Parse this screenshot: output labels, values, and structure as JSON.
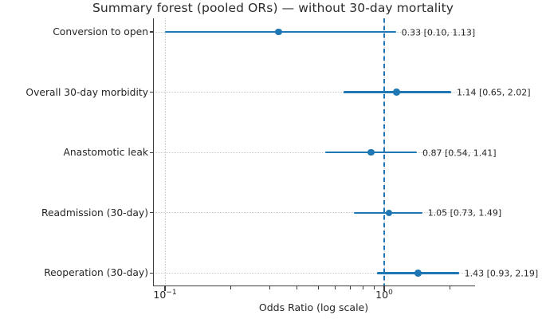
{
  "figure": {
    "title": "Summary forest (pooled ORs) — without 30-day mortality",
    "background": "#ffffff"
  },
  "chart_data": {
    "type": "scatter",
    "variant": "forest-plot",
    "title": "Summary forest (pooled ORs) — without 30-day mortality",
    "xlabel": "Odds Ratio (log scale)",
    "ylabel": "",
    "x_scale": "log10",
    "xlim": [
      0.088,
      2.6
    ],
    "grid": {
      "horizontal": "dotted per category row",
      "vertical": "dotted at major ticks"
    },
    "legend": "none",
    "reference_line": {
      "x": 1.0,
      "style": "dashed",
      "color": "#1f77b4"
    },
    "x_ticks_major": [
      {
        "value": 0.1,
        "base": "10",
        "exp": "−1"
      },
      {
        "value": 1.0,
        "base": "10",
        "exp": "0"
      }
    ],
    "x_ticks_minor": [
      0.2,
      0.3,
      0.4,
      0.5,
      0.6,
      0.7,
      0.8,
      0.9,
      2.0
    ],
    "rows": [
      {
        "label": "Conversion to open",
        "or": 0.33,
        "ci_low": 0.1,
        "ci_high": 1.13,
        "annotation": "0.33 [0.10, 1.13]"
      },
      {
        "label": "Overall 30-day morbidity",
        "or": 1.14,
        "ci_low": 0.65,
        "ci_high": 2.02,
        "annotation": "1.14 [0.65, 2.02]"
      },
      {
        "label": "Anastomotic leak",
        "or": 0.87,
        "ci_low": 0.54,
        "ci_high": 1.41,
        "annotation": "0.87 [0.54, 1.41]"
      },
      {
        "label": "Readmission (30-day)",
        "or": 1.05,
        "ci_low": 0.73,
        "ci_high": 1.49,
        "annotation": "1.05 [0.73, 1.49]"
      },
      {
        "label": "Reoperation (30-day)",
        "or": 1.43,
        "ci_low": 0.93,
        "ci_high": 2.19,
        "annotation": "1.43 [0.93, 2.19]"
      }
    ],
    "colors": {
      "marker": "#1f77b4",
      "ci_line": "#1f77b4",
      "reference": "#1f77b4",
      "grid": "#cccccc",
      "spine": "#3d3d3d",
      "text": "#262626"
    }
  }
}
